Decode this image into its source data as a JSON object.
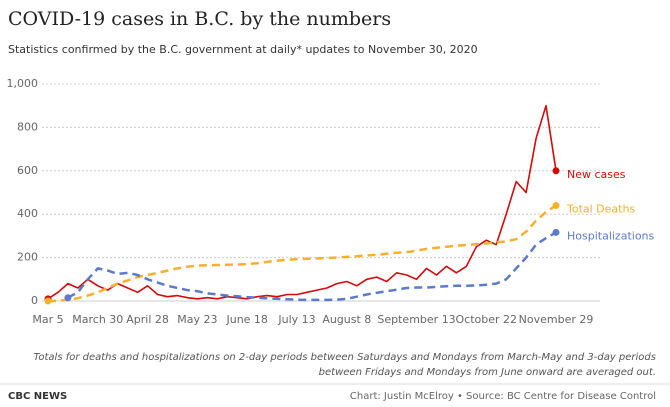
{
  "chart_data": {
    "type": "line",
    "title": "COVID-19 cases in B.C. by the numbers",
    "subtitle": "Statistics confirmed by the B.C. government at daily* updates to November 30, 2020",
    "categories": [
      "Mar 5",
      null,
      null,
      null,
      null,
      "March 30",
      null,
      null,
      null,
      null,
      "April 28",
      null,
      null,
      null,
      null,
      "May 23",
      null,
      null,
      null,
      null,
      "June 18",
      null,
      null,
      null,
      null,
      "July 13",
      null,
      null,
      null,
      null,
      "August 8",
      null,
      null,
      null,
      null,
      null,
      null,
      "September 13",
      null,
      null,
      null,
      null,
      null,
      null,
      "October 22",
      null,
      null,
      null,
      null,
      null,
      null,
      "November 29"
    ],
    "series": [
      {
        "name": "New cases",
        "color": "#d10a0a",
        "dashed": false,
        "values": [
          10,
          40,
          80,
          60,
          100,
          70,
          50,
          80,
          60,
          40,
          70,
          30,
          20,
          25,
          15,
          10,
          15,
          10,
          20,
          15,
          10,
          20,
          25,
          20,
          30,
          30,
          40,
          50,
          60,
          80,
          90,
          70,
          100,
          110,
          90,
          130,
          120,
          100,
          150,
          120,
          160,
          130,
          160,
          250,
          280,
          260,
          400,
          550,
          500,
          750,
          900,
          600
        ]
      },
      {
        "name": "Total Deaths",
        "color": "#f6b02c",
        "dashed": true,
        "values": [
          0,
          1,
          5,
          13,
          25,
          40,
          60,
          80,
          95,
          110,
          120,
          130,
          140,
          150,
          158,
          163,
          165,
          166,
          167,
          168,
          170,
          174,
          180,
          186,
          190,
          193,
          195,
          196,
          198,
          200,
          203,
          206,
          210,
          213,
          218,
          222,
          225,
          232,
          240,
          245,
          250,
          255,
          258,
          262,
          265,
          270,
          275,
          285,
          320,
          370,
          410,
          440
        ]
      },
      {
        "name": "Hospitalizations",
        "color": "#5a7bc9",
        "dashed": true,
        "values": [
          null,
          null,
          15,
          40,
          100,
          150,
          140,
          125,
          130,
          120,
          100,
          85,
          70,
          60,
          50,
          45,
          35,
          30,
          25,
          22,
          18,
          15,
          12,
          10,
          8,
          6,
          5,
          5,
          5,
          6,
          10,
          20,
          30,
          38,
          45,
          52,
          60,
          62,
          62,
          65,
          68,
          70,
          70,
          72,
          75,
          80,
          100,
          150,
          200,
          260,
          290,
          316
        ]
      }
    ],
    "ylim": [
      0,
      1000
    ],
    "yticks": [
      0,
      200,
      400,
      600,
      800,
      {
        "value": 1000,
        "label": "1,000"
      }
    ],
    "grid": true,
    "note": [
      "Totals for deaths and hospitalizations on 2-day periods between Saturdays and Mondays from March-May and 3-day periods",
      "between Fridays and Mondays from June onward are averaged out."
    ],
    "brand": "CBC NEWS",
    "source": "Chart: Justin McElroy • Source: BC Centre for Disease Control"
  }
}
